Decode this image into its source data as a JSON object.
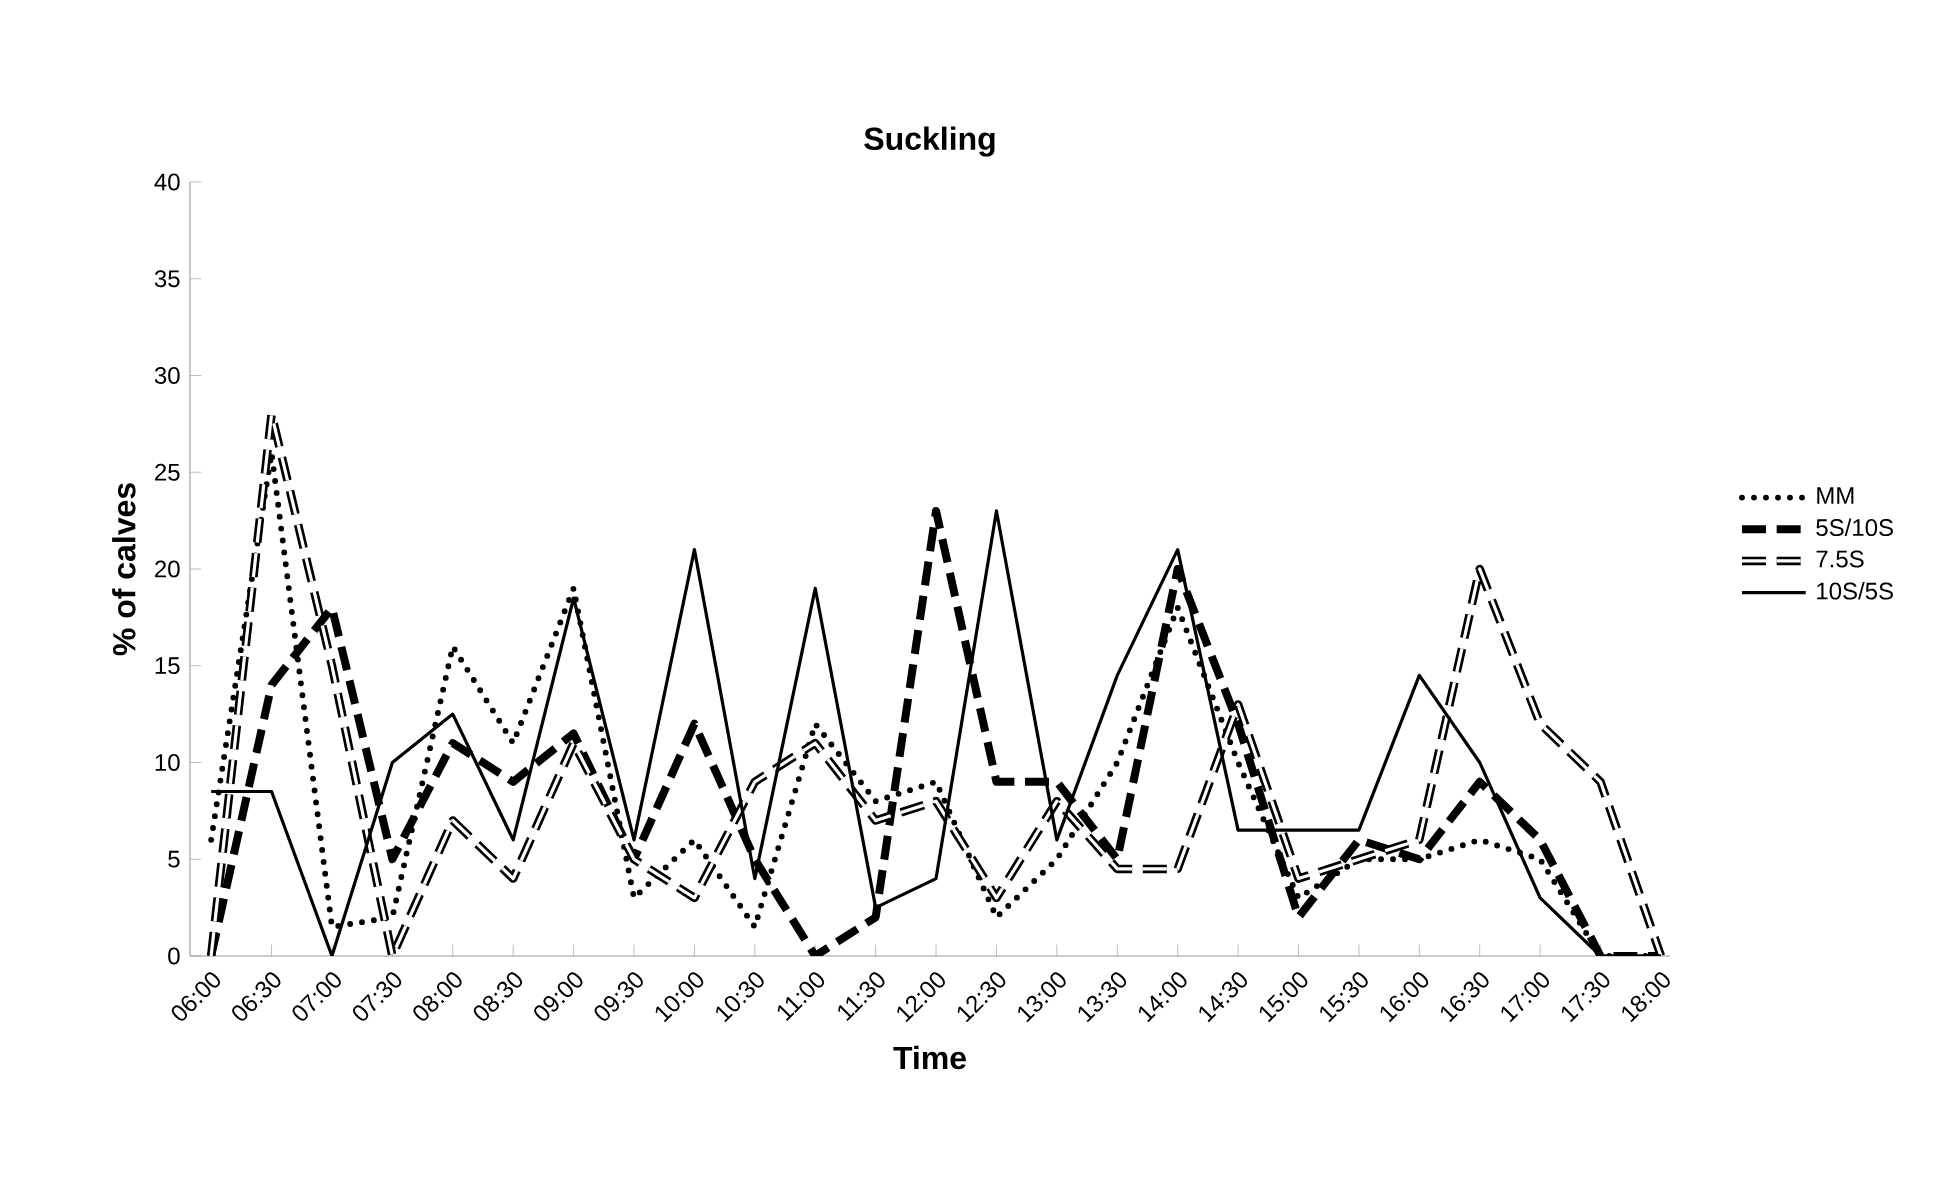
{
  "chart_data": {
    "type": "line",
    "title": "Suckling",
    "xlabel": "Time",
    "ylabel": "% of calves",
    "categories": [
      "06:00",
      "06:30",
      "07:00",
      "07:30",
      "08:00",
      "08:30",
      "09:00",
      "09:30",
      "10:00",
      "10:30",
      "11:00",
      "11:30",
      "12:00",
      "12:30",
      "13:00",
      "13:30",
      "14:00",
      "14:30",
      "15:00",
      "15:30",
      "16:00",
      "16:30",
      "17:00",
      "17:30",
      "18:00"
    ],
    "series": [
      {
        "name": "MM",
        "color": "#000000",
        "line_style": "dotted",
        "values": [
          6,
          26,
          1.5,
          2,
          16,
          11,
          19,
          3,
          6,
          1.5,
          12,
          8,
          9,
          2,
          5,
          10,
          18,
          10,
          3,
          5,
          5,
          6,
          5,
          0,
          0
        ]
      },
      {
        "name": "5S/10S",
        "color": "#000000",
        "line_style": "dashed",
        "values": [
          0,
          14,
          18,
          5,
          11,
          9,
          11.5,
          5,
          12,
          5,
          0,
          2,
          23,
          9,
          9,
          5,
          20,
          12,
          2,
          6,
          5,
          9,
          6,
          0,
          0
        ]
      },
      {
        "name": "7.5S",
        "color": "#000000",
        "line_style": "dashed",
        "values": [
          0,
          28,
          15,
          0,
          7,
          4,
          11,
          5,
          3,
          9,
          11,
          7,
          8,
          3,
          8,
          4.5,
          4.5,
          13,
          4,
          5,
          6,
          20,
          12,
          9,
          0
        ]
      },
      {
        "name": "10S/5S",
        "color": "#000000",
        "line_style": "solid",
        "values": [
          8.5,
          8.5,
          0,
          10,
          12.5,
          6,
          18.5,
          6,
          21,
          4,
          19,
          2.5,
          4,
          23,
          6,
          14.5,
          21,
          6.5,
          6.5,
          6.5,
          14.5,
          10,
          3,
          0,
          0
        ]
      }
    ],
    "ylim": [
      0,
      40
    ],
    "yticks": [
      0,
      5,
      10,
      15,
      20,
      25,
      30,
      35,
      40
    ],
    "grid": false,
    "legend": "right",
    "marker": "none"
  }
}
